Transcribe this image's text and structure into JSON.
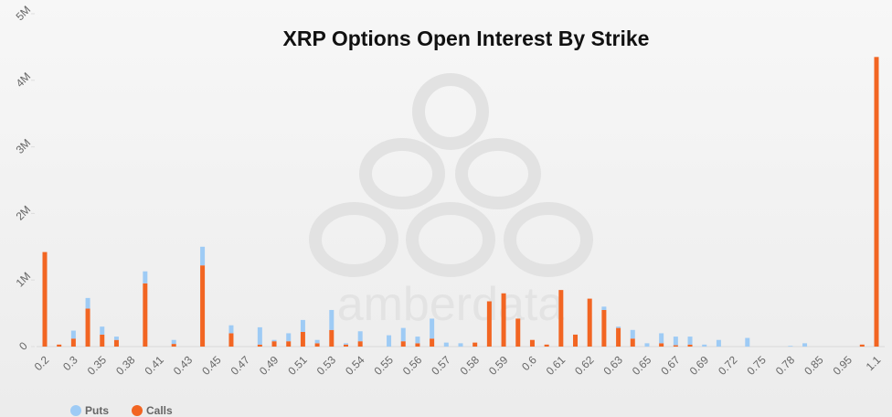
{
  "chart_data": {
    "type": "stacked_bar",
    "title": "XRP Options Open Interest By Strike",
    "watermark": "amberdata",
    "categories": [
      "0.2",
      null,
      "0.3",
      null,
      "0.35",
      null,
      "0.38",
      null,
      "0.41",
      null,
      "0.43",
      null,
      "0.45",
      null,
      "0.47",
      null,
      "0.49",
      null,
      "0.51",
      null,
      "0.53",
      null,
      "0.54",
      null,
      "0.55",
      null,
      "0.56",
      null,
      "0.57",
      null,
      "0.58",
      null,
      "0.59",
      null,
      "0.6",
      null,
      "0.61",
      null,
      "0.62",
      null,
      "0.63",
      null,
      "0.65",
      null,
      "0.67",
      null,
      "0.69",
      null,
      "0.72",
      null,
      "0.75",
      null,
      "0.78",
      null,
      "0.85",
      null,
      "0.95",
      null,
      "1.1"
    ],
    "series": [
      {
        "name": "Calls",
        "color": "#f26522",
        "values": [
          1420000,
          30000,
          120000,
          570000,
          180000,
          100000,
          0,
          950000,
          0,
          40000,
          0,
          1220000,
          0,
          200000,
          0,
          30000,
          80000,
          80000,
          220000,
          50000,
          250000,
          30000,
          80000,
          0,
          0,
          80000,
          50000,
          120000,
          0,
          0,
          60000,
          680000,
          800000,
          420000,
          100000,
          30000,
          850000,
          180000,
          720000,
          550000,
          280000,
          120000,
          0,
          50000,
          20000,
          30000,
          0,
          0,
          0,
          0,
          0,
          0,
          0,
          0,
          0,
          0,
          0,
          30000,
          4350000
        ]
      },
      {
        "name": "Puts",
        "color": "#9ecbf5",
        "values": [
          0,
          0,
          120000,
          160000,
          120000,
          50000,
          0,
          180000,
          0,
          60000,
          0,
          280000,
          0,
          120000,
          0,
          260000,
          20000,
          120000,
          180000,
          50000,
          300000,
          20000,
          150000,
          0,
          170000,
          200000,
          100000,
          300000,
          60000,
          50000,
          0,
          0,
          0,
          0,
          0,
          0,
          0,
          0,
          0,
          50000,
          20000,
          130000,
          50000,
          150000,
          130000,
          120000,
          30000,
          100000,
          0,
          130000,
          0,
          0,
          10000,
          50000,
          0,
          0,
          0,
          0,
          0
        ]
      }
    ],
    "ylim": [
      0,
      5000000
    ],
    "yticks": [
      0,
      {
        "value": 1000000,
        "label": "1M"
      },
      {
        "value": 2000000,
        "label": "2M"
      },
      {
        "value": 3000000,
        "label": "3M"
      },
      {
        "value": 4000000,
        "label": "4M"
      },
      {
        "value": 5000000,
        "label": "5M"
      }
    ],
    "legend": "bottom-left",
    "legend_order": [
      1,
      0
    ]
  }
}
